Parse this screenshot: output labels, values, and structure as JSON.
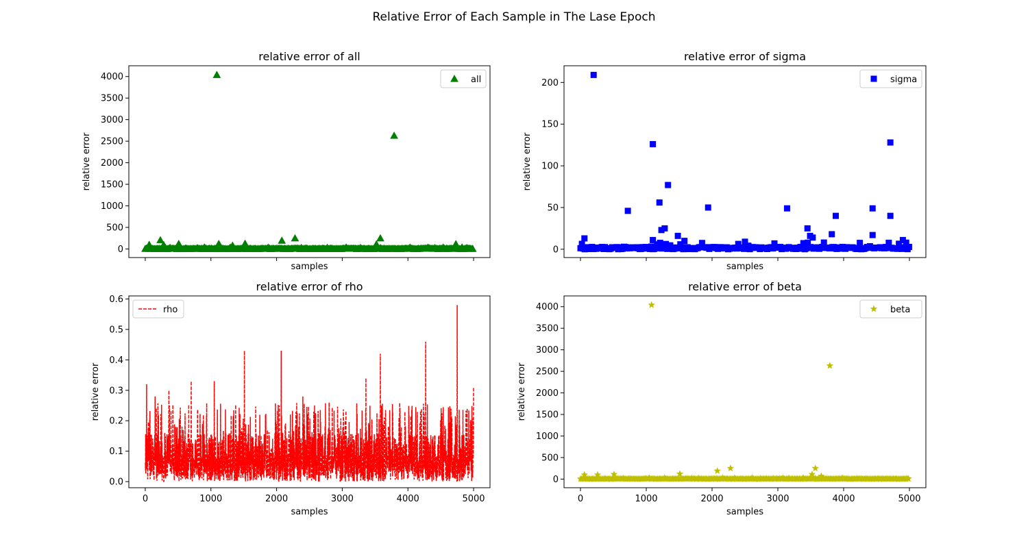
{
  "figure": {
    "suptitle": "Relative Error of Each Sample in The Lase Epoch"
  },
  "chart_data": [
    {
      "id": "all",
      "type": "scatter",
      "title": "relative error of all",
      "xlabel": "samples",
      "ylabel": "relative error",
      "xlim": [
        -250,
        5250
      ],
      "ylim": [
        -200,
        4250
      ],
      "xticks": [
        0,
        1000,
        2000,
        3000,
        4000,
        5000
      ],
      "xtick_labels_visible": false,
      "yticks": [
        0,
        500,
        1000,
        1500,
        2000,
        2500,
        3000,
        3500,
        4000
      ],
      "marker": "triangle",
      "color": "#008000",
      "legend": {
        "label": "all",
        "placement": "upper-right"
      },
      "series": [
        {
          "name": "all",
          "x": [
            1090,
            3790,
            230,
            2280,
            3580,
            510,
            2080,
            1120,
            1520,
            4730,
            60,
            280,
            3520,
            1330
          ],
          "y": [
            4040,
            2630,
            205,
            250,
            250,
            120,
            195,
            120,
            125,
            115,
            100,
            95,
            110,
            80
          ]
        }
      ],
      "baseline_band": {
        "x": [
          0,
          5000
        ],
        "y": [
          0,
          40
        ]
      }
    },
    {
      "id": "sigma",
      "type": "scatter",
      "title": "relative error of sigma",
      "xlabel": "samples",
      "ylabel": "relative error",
      "xlim": [
        -250,
        5250
      ],
      "ylim": [
        -10,
        220
      ],
      "xticks": [
        0,
        1000,
        2000,
        3000,
        4000,
        5000
      ],
      "xtick_labels_visible": false,
      "yticks": [
        0,
        50,
        100,
        150,
        200
      ],
      "marker": "square",
      "color": "#0000ff",
      "legend": {
        "label": "sigma",
        "placement": "upper-right"
      },
      "series": [
        {
          "name": "sigma",
          "x": [
            200,
            1100,
            4710,
            1330,
            1200,
            720,
            1940,
            3140,
            4440,
            4710,
            3880,
            1280,
            1230,
            3450,
            3490,
            3530,
            3820,
            4440,
            60,
            1480,
            1100,
            1580,
            2500,
            3700,
            4900
          ],
          "y": [
            209,
            126,
            128,
            77,
            56,
            46,
            50,
            49,
            49,
            40,
            40,
            25,
            23,
            25,
            16,
            14,
            18,
            17,
            13,
            16,
            11,
            10,
            9,
            8,
            11
          ]
        }
      ],
      "baseline_band": {
        "x": [
          0,
          5000
        ],
        "y": [
          0,
          8
        ]
      }
    },
    {
      "id": "rho",
      "type": "line",
      "title": "relative error of rho",
      "xlabel": "samples",
      "ylabel": "relative error",
      "xlim": [
        -250,
        5250
      ],
      "ylim": [
        -0.02,
        0.61
      ],
      "xticks": [
        0,
        1000,
        2000,
        3000,
        4000,
        5000
      ],
      "yticks": [
        0.0,
        0.1,
        0.2,
        0.3,
        0.4,
        0.5,
        0.6
      ],
      "linestyle": "dashed",
      "color": "#ff0000",
      "legend": {
        "label": "rho",
        "placement": "upper-left"
      },
      "series": [
        {
          "name": "rho",
          "peaks_x": [
            20,
            150,
            360,
            700,
            1050,
            1510,
            2070,
            2400,
            2800,
            3360,
            3580,
            4270,
            4750,
            5000
          ],
          "peaks_y": [
            0.32,
            0.28,
            0.3,
            0.33,
            0.33,
            0.43,
            0.43,
            0.28,
            0.26,
            0.34,
            0.42,
            0.46,
            0.58,
            0.31
          ],
          "n_samples": 5000,
          "typical_range": [
            0.0,
            0.2
          ]
        }
      ]
    },
    {
      "id": "beta",
      "type": "scatter",
      "title": "relative error of beta",
      "xlabel": "samples",
      "ylabel": "relative error",
      "xlim": [
        -250,
        5250
      ],
      "ylim": [
        -200,
        4250
      ],
      "xticks": [
        0,
        1000,
        2000,
        3000,
        4000,
        5000
      ],
      "yticks": [
        0,
        500,
        1000,
        1500,
        2000,
        2500,
        3000,
        3500,
        4000
      ],
      "marker": "star",
      "color": "#bfbf00",
      "legend": {
        "label": "beta",
        "placement": "upper-right"
      },
      "series": [
        {
          "name": "beta",
          "x": [
            1080,
            3790,
            2280,
            3570,
            2080,
            1510,
            510,
            60,
            260,
            3520,
            3660
          ],
          "y": [
            4040,
            2630,
            250,
            250,
            190,
            120,
            110,
            100,
            100,
            110,
            70
          ]
        }
      ],
      "baseline_band": {
        "x": [
          0,
          5000
        ],
        "y": [
          0,
          30
        ]
      }
    }
  ]
}
